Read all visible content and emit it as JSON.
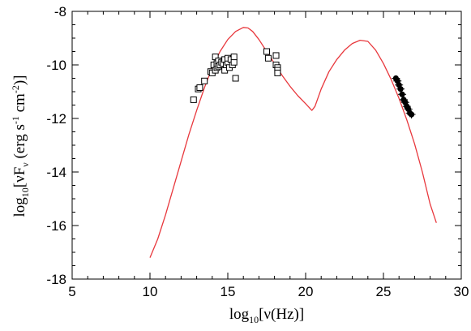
{
  "chart_data": {
    "type": "scatter",
    "title": "",
    "xlabel": {
      "base": "log",
      "sub": "10",
      "rest": "[ν(Hz)]"
    },
    "ylabel": {
      "base": "log",
      "sub1": "10",
      "part1": "[νF",
      "sub2": "ν",
      "part2": " (erg s",
      "sup1": "-1",
      "part3": " cm",
      "sup2": "-2",
      "part4": ")]"
    },
    "xlim": [
      5,
      30
    ],
    "ylim": [
      -18,
      -8
    ],
    "xticks": [
      5,
      10,
      15,
      20,
      25,
      30
    ],
    "xtick_labels": [
      "5",
      "10",
      "15",
      "20",
      "25",
      "30"
    ],
    "yticks": [
      -18,
      -16,
      -14,
      -12,
      -10,
      -8
    ],
    "ytick_labels": [
      "-18",
      "-16",
      "-14",
      "-12",
      "-10",
      "-8"
    ],
    "grid": false,
    "colors": {
      "model": "#e8383d",
      "points": "#000000",
      "frame": "#000000"
    },
    "series": [
      {
        "kind": "line",
        "x": [
          10.0,
          10.5,
          11.0,
          11.5,
          12.0,
          12.5,
          13.0,
          13.5,
          14.0,
          14.5,
          15.0,
          15.5,
          16.0,
          16.3,
          16.6,
          17.0,
          17.5,
          18.0,
          18.5,
          19.0,
          19.5,
          20.0,
          20.4,
          20.6,
          21.0,
          21.5,
          22.0,
          22.5,
          23.0,
          23.5,
          24.0,
          24.5,
          25.0,
          25.5,
          26.0,
          26.5,
          27.0,
          27.5,
          28.0,
          28.4
        ],
        "y": [
          -17.2,
          -16.5,
          -15.6,
          -14.6,
          -13.6,
          -12.6,
          -11.7,
          -10.85,
          -10.1,
          -9.5,
          -9.05,
          -8.75,
          -8.6,
          -8.62,
          -8.75,
          -9.05,
          -9.5,
          -9.95,
          -10.4,
          -10.8,
          -11.15,
          -11.45,
          -11.7,
          -11.55,
          -10.9,
          -10.25,
          -9.8,
          -9.45,
          -9.2,
          -9.08,
          -9.12,
          -9.45,
          -9.95,
          -10.55,
          -11.25,
          -12.05,
          -12.95,
          -14.0,
          -15.2,
          -15.9
        ]
      },
      {
        "kind": "open-square",
        "x": [
          12.8,
          13.1,
          13.2,
          13.5,
          13.9,
          14.0,
          14.1,
          14.2,
          14.2,
          14.3,
          14.3,
          14.4,
          14.4,
          14.5,
          14.6,
          14.7,
          14.8,
          14.8,
          14.9,
          15.0,
          15.0,
          15.1,
          15.2,
          15.3,
          15.4,
          15.4,
          15.5,
          17.5,
          17.6,
          18.1,
          18.1,
          18.2,
          18.2,
          18.2
        ],
        "y": [
          -11.3,
          -10.9,
          -10.85,
          -10.6,
          -10.25,
          -10.3,
          -10.0,
          -10.2,
          -9.7,
          -10.1,
          -9.95,
          -10.05,
          -9.85,
          -10.0,
          -9.9,
          -9.95,
          -10.2,
          -9.8,
          -10.0,
          -9.9,
          -9.75,
          -10.1,
          -9.8,
          -10.0,
          -9.9,
          -9.7,
          -10.5,
          -9.5,
          -9.75,
          -9.65,
          -10.0,
          -10.1,
          -10.2,
          -10.3
        ]
      },
      {
        "kind": "filled-circle-errorbar",
        "x": [
          25.8,
          25.9,
          26.0,
          26.1,
          26.2,
          26.3,
          26.4,
          26.5,
          26.6,
          26.7,
          26.8
        ],
        "y": [
          -10.5,
          -10.6,
          -10.75,
          -10.9,
          -11.1,
          -11.3,
          -11.4,
          -11.55,
          -11.65,
          -11.8,
          -11.85
        ],
        "yerr": [
          0.1,
          0.1,
          0.1,
          0.1,
          0.1,
          0.12,
          0.12,
          0.12,
          0.15,
          0.15,
          0.15
        ]
      }
    ]
  }
}
